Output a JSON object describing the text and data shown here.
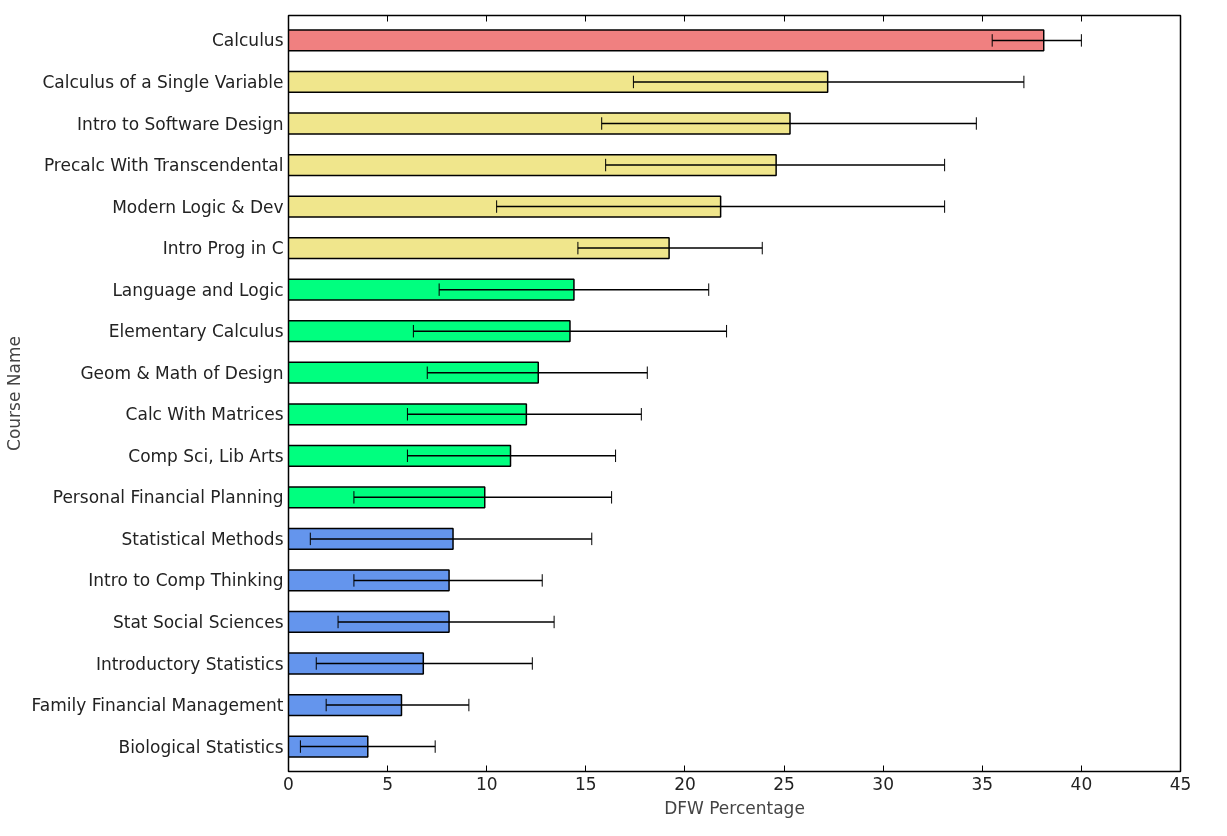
{
  "chart_data": {
    "type": "bar",
    "orientation": "horizontal",
    "xlabel": "DFW Percentage",
    "ylabel": "Course Name",
    "categories": [
      "Calculus",
      "Calculus of a Single Variable",
      "Intro to Software Design",
      "Precalc With Transcendental",
      "Modern Logic & Dev",
      "Intro Prog in C",
      "Language and Logic",
      "Elementary Calculus",
      "Geom & Math of Design",
      "Calc With Matrices",
      "Comp Sci, Lib Arts",
      "Personal Financial Planning",
      "Statistical Methods",
      "Intro to Comp Thinking",
      "Stat Social Sciences",
      "Introductory Statistics",
      "Family Financial Management",
      "Biological Statistics"
    ],
    "values": [
      38.1,
      27.2,
      25.3,
      24.6,
      21.8,
      19.2,
      14.4,
      14.2,
      12.6,
      12.0,
      11.2,
      9.9,
      8.3,
      8.1,
      8.1,
      6.8,
      5.7,
      4.0
    ],
    "errors": [
      [
        35.5,
        40.0
      ],
      [
        17.4,
        37.1
      ],
      [
        15.8,
        34.7
      ],
      [
        16.0,
        33.1
      ],
      [
        10.5,
        33.1
      ],
      [
        14.6,
        23.9
      ],
      [
        7.6,
        21.2
      ],
      [
        6.3,
        22.1
      ],
      [
        7.0,
        18.1
      ],
      [
        6.0,
        17.8
      ],
      [
        6.0,
        16.5
      ],
      [
        3.3,
        16.3
      ],
      [
        1.1,
        15.3
      ],
      [
        3.3,
        12.8
      ],
      [
        2.5,
        13.4
      ],
      [
        1.4,
        12.3
      ],
      [
        1.9,
        9.1
      ],
      [
        0.6,
        7.4
      ]
    ],
    "colors": [
      "#f08080",
      "#f0e68c",
      "#f0e68c",
      "#f0e68c",
      "#f0e68c",
      "#f0e68c",
      "#00ff7f",
      "#00ff7f",
      "#00ff7f",
      "#00ff7f",
      "#00ff7f",
      "#00ff7f",
      "#6495ed",
      "#6495ed",
      "#6495ed",
      "#6495ed",
      "#6495ed",
      "#6495ed"
    ],
    "xlim": [
      0,
      45
    ],
    "xticks": [
      0,
      5,
      10,
      15,
      20,
      25,
      30,
      35,
      40,
      45
    ],
    "grid": false
  }
}
